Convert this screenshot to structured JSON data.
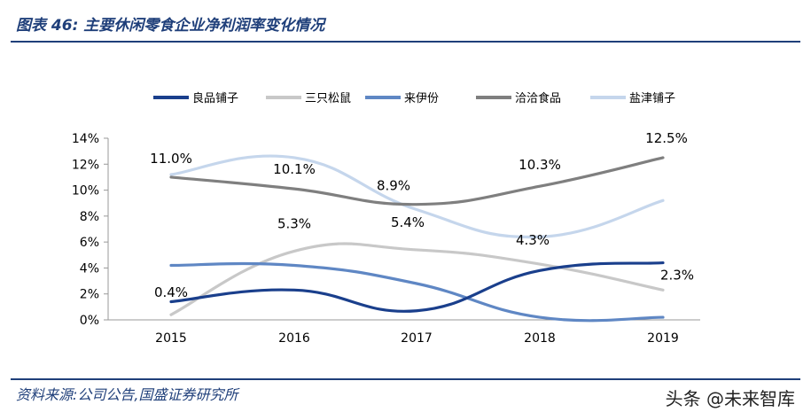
{
  "header": {
    "title": "图表 46:  主要休闲零食企业净利润率变化情况"
  },
  "footer": {
    "source": "资料来源:公司公告,国盛证券研究所",
    "watermark": "头条 @未来智库"
  },
  "chart_data": {
    "type": "line",
    "categories": [
      "2015",
      "2016",
      "2017",
      "2018",
      "2019"
    ],
    "ylim": [
      0,
      14
    ],
    "yticks": [
      "0%",
      "2%",
      "4%",
      "6%",
      "8%",
      "10%",
      "12%",
      "14%"
    ],
    "grid": false,
    "legend_position": "top",
    "series": [
      {
        "name": "良品铺子",
        "color": "#1a3f8c",
        "values": [
          1.4,
          2.3,
          0.7,
          3.8,
          4.4
        ]
      },
      {
        "name": "三只松鼠",
        "color": "#c8c8c8",
        "values": [
          0.4,
          5.3,
          5.4,
          4.3,
          2.3
        ]
      },
      {
        "name": "来伊份",
        "color": "#5f87c4",
        "values": [
          4.2,
          4.2,
          2.8,
          0.2,
          0.2
        ]
      },
      {
        "name": "洽洽食品",
        "color": "#7f7f7f",
        "values": [
          11.0,
          10.1,
          8.9,
          10.3,
          12.5
        ]
      },
      {
        "name": "盐津铺子",
        "color": "#c5d6ec",
        "values": [
          11.2,
          12.5,
          8.5,
          6.4,
          9.2
        ]
      }
    ],
    "annotations": [
      {
        "text": "11.0%",
        "category": "2015",
        "y": 11.0
      },
      {
        "text": "10.1%",
        "category": "2016",
        "y": 10.1
      },
      {
        "text": "8.9%",
        "category": "2017",
        "y": 8.9
      },
      {
        "text": "10.3%",
        "category": "2018",
        "y": 10.3
      },
      {
        "text": "12.5%",
        "category": "2019",
        "y": 12.5
      },
      {
        "text": "0.4%",
        "category": "2015",
        "y": 0.4
      },
      {
        "text": "5.3%",
        "category": "2016",
        "y": 5.3
      },
      {
        "text": "5.4%",
        "category": "2017",
        "y": 5.4
      },
      {
        "text": "4.3%",
        "category": "2018",
        "y": 4.3
      },
      {
        "text": "2.3%",
        "category": "2019",
        "y": 2.3
      }
    ]
  }
}
